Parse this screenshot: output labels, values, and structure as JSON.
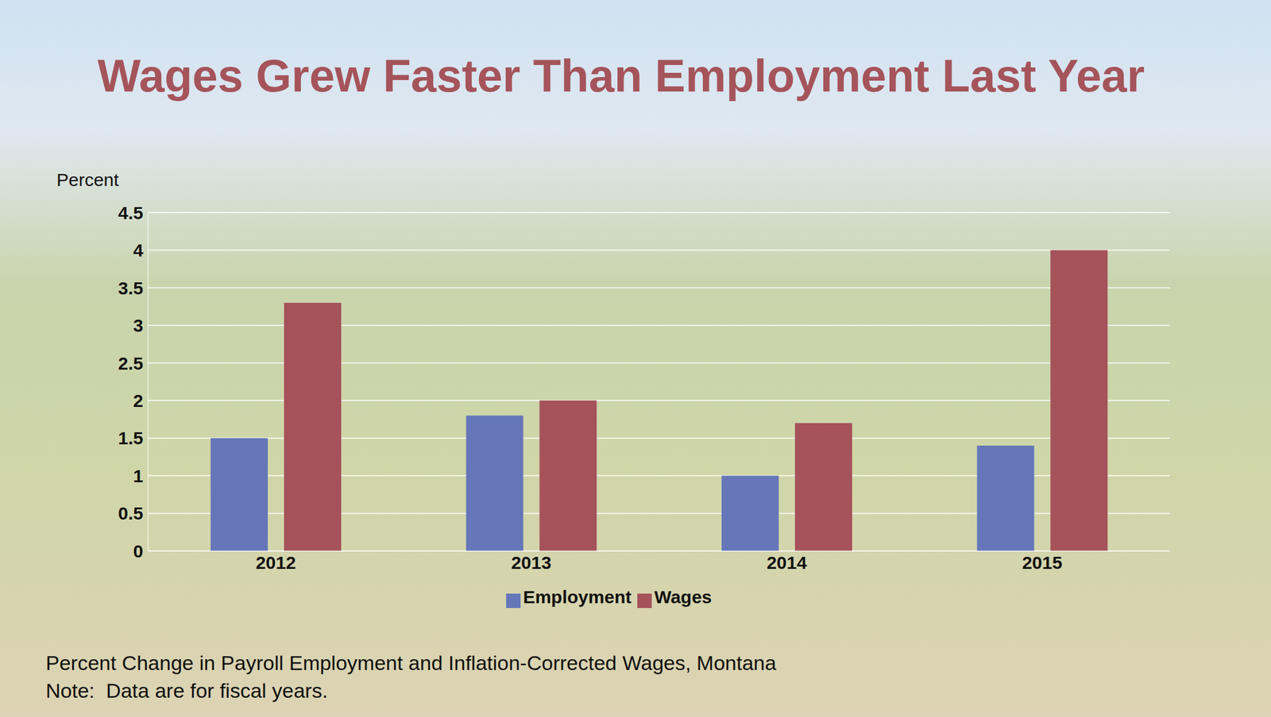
{
  "chart_data": {
    "type": "bar",
    "title": "Wages Grew Faster Than Employment Last Year",
    "y_label": "Percent",
    "categories": [
      "2012",
      "2013",
      "2014",
      "2015"
    ],
    "series": [
      {
        "name": "Employment",
        "color": "#6577b9",
        "values": [
          1.5,
          1.8,
          1.0,
          1.4
        ]
      },
      {
        "name": "Wages",
        "color": "#a6525a",
        "values": [
          3.3,
          2.0,
          1.7,
          4.0
        ]
      }
    ],
    "ylim": [
      0,
      4.5
    ],
    "yticks": [
      0,
      0.5,
      1,
      1.5,
      2,
      2.5,
      3,
      3.5,
      4,
      4.5
    ],
    "grid": true,
    "legend": "bottom",
    "annotations": [
      "Percent Change in Payroll Employment and Inflation-Corrected Wages, Montana",
      "Note:  Data are for fiscal years."
    ]
  }
}
